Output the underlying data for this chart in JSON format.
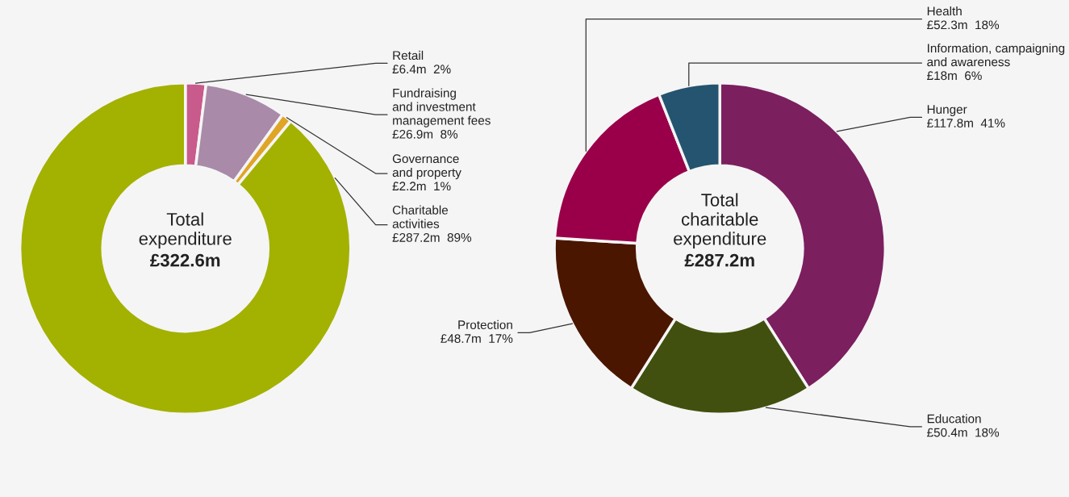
{
  "chart_data": [
    {
      "type": "donut",
      "title": "Total\nexpenditure",
      "subtitle": "£322.6m",
      "categories": [
        "Retail",
        "Fundraising\nand investment\nmanagement fees",
        "Governance\nand property",
        "Charitable\nactivities"
      ],
      "values": [
        2,
        8,
        1,
        89
      ],
      "value_labels": [
        "£6.4m  2%",
        "£26.9m  8%",
        "£2.2m  1%",
        "£287.2m  89%"
      ],
      "colors": [
        "#c95a8c",
        "#a98aa9",
        "#e0a526",
        "#a3b100"
      ]
    },
    {
      "type": "donut",
      "title": "Total\ncharitable\nexpenditure",
      "subtitle": "£287.2m",
      "categories": [
        "Hunger",
        "Education",
        "Protection",
        "Health",
        "Information, campaigning\nand awareness"
      ],
      "values": [
        41,
        18,
        17,
        18,
        6
      ],
      "value_labels": [
        "£117.8m  41%",
        "£50.4m  18%",
        "£48.7m  17%",
        "£52.3m  18%",
        "£18m  6%"
      ],
      "colors": [
        "#7b1f5f",
        "#41500f",
        "#4a1600",
        "#9a0049",
        "#24546f"
      ]
    }
  ]
}
